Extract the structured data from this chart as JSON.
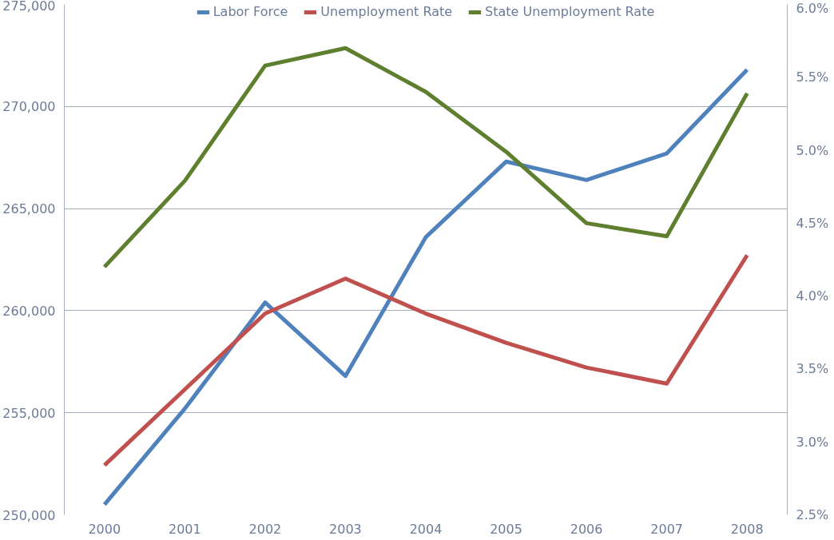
{
  "chart_data": {
    "type": "line",
    "x": [
      2000,
      2001,
      2002,
      2003,
      2004,
      2005,
      2006,
      2007,
      2008
    ],
    "series": [
      {
        "name": "Labor Force",
        "color": "#4f81bd",
        "values": [
          250500,
          255200,
          260400,
          256800,
          263600,
          267300,
          266400,
          267700,
          271800
        ]
      },
      {
        "name": "Unemployment Rate",
        "color": "#c0504d",
        "axis": "y2",
        "values": [
          2.84,
          3.36,
          3.88,
          4.12,
          3.88,
          3.68,
          3.51,
          3.4,
          4.28
        ]
      },
      {
        "name": "State Unemployment Rate",
        "color": "#5e7f2e",
        "axis": "y2",
        "values": [
          4.2,
          4.79,
          5.58,
          5.7,
          5.4,
          4.99,
          4.5,
          4.41,
          5.39
        ]
      }
    ],
    "xlim": [
      1999.5,
      2008.5
    ],
    "xticks": [
      2000,
      2001,
      2002,
      2003,
      2004,
      2005,
      2006,
      2007,
      2008
    ],
    "ylim": [
      250000,
      275000
    ],
    "yticks": [
      {
        "value": 250000,
        "label": "250,000"
      },
      {
        "value": 255000,
        "label": "255,000"
      },
      {
        "value": 260000,
        "label": "260,000"
      },
      {
        "value": 265000,
        "label": "265,000"
      },
      {
        "value": 270000,
        "label": "270,000"
      },
      {
        "value": 275000,
        "label": "275,000"
      }
    ],
    "y2lim": [
      2.5,
      6.0
    ],
    "y2ticks": [
      {
        "value": 2.5,
        "label": "2.5%"
      },
      {
        "value": 3.0,
        "label": "3.0%"
      },
      {
        "value": 3.5,
        "label": "3.5%"
      },
      {
        "value": 4.0,
        "label": "4.0%"
      },
      {
        "value": 4.5,
        "label": "4.5%"
      },
      {
        "value": 5.0,
        "label": "5.0%"
      },
      {
        "value": 5.5,
        "label": "5.5%"
      },
      {
        "value": 6.0,
        "label": "6.0%"
      }
    ],
    "grid": "y",
    "legend": "top",
    "line_style": "solid",
    "marker": "none"
  }
}
